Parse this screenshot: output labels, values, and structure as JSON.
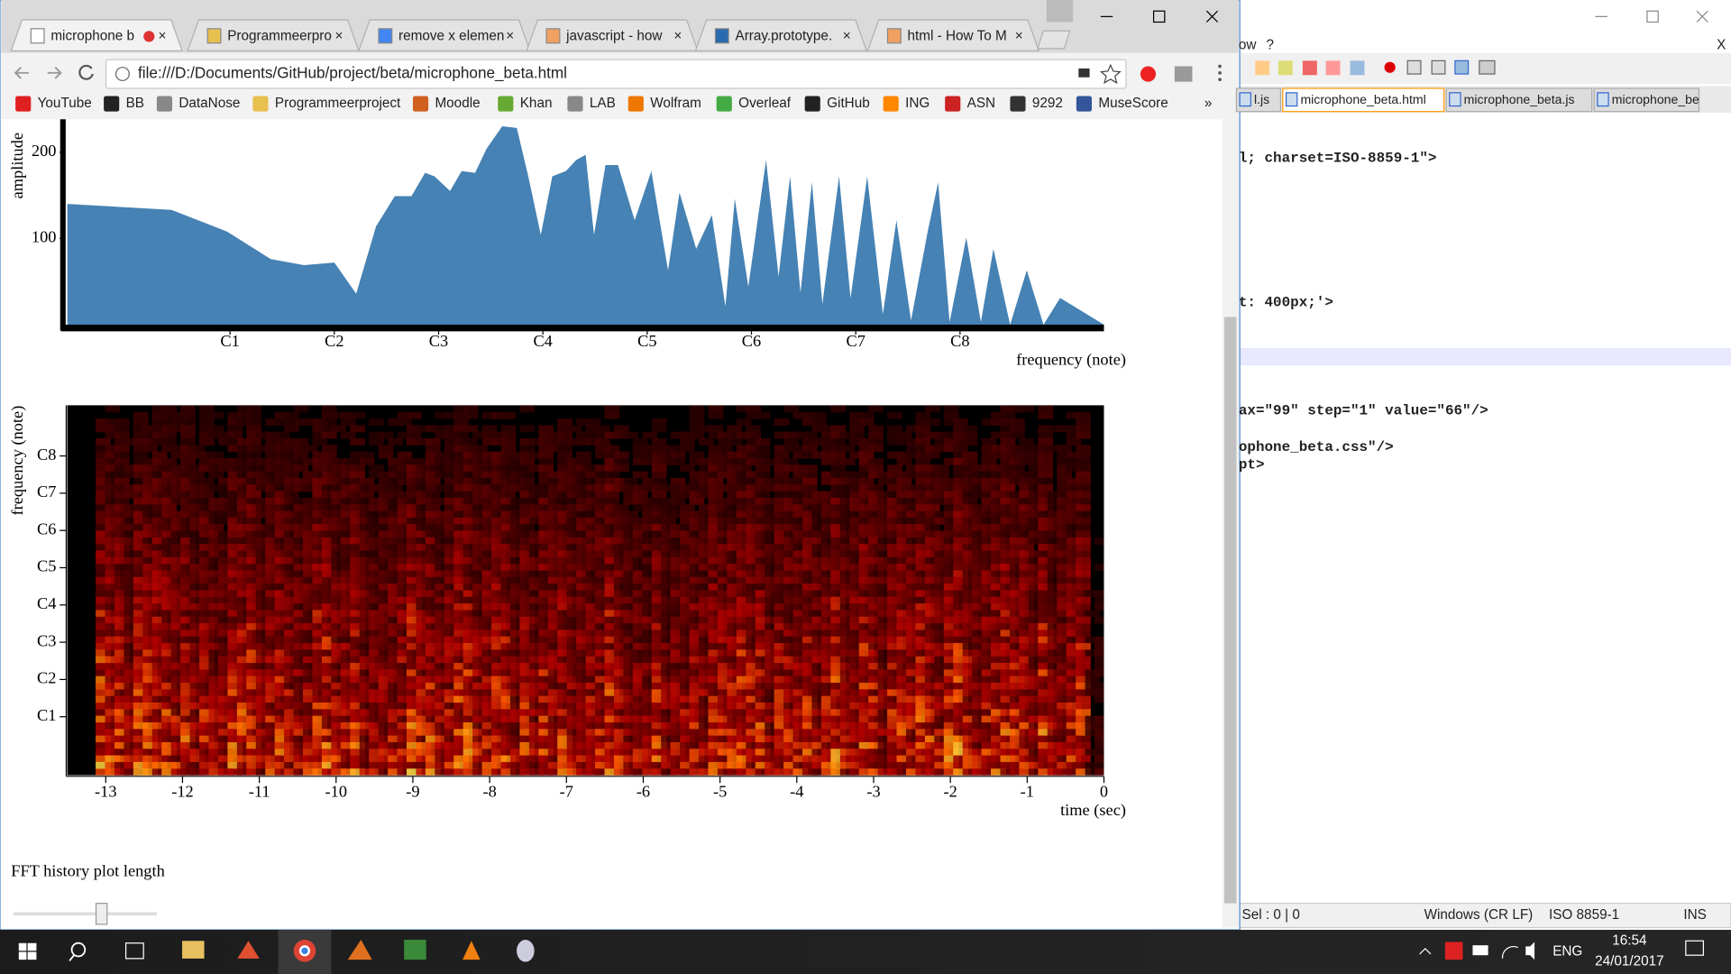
{
  "browser": {
    "tabs": [
      "microphone b",
      "Programmeerpro",
      "remove x elemen",
      "javascript - how",
      "Array.prototype.",
      "html - How To M"
    ],
    "url": "file:///D:/Documents/GitHub/project/beta/microphone_beta.html",
    "bookmarks": [
      "YouTube",
      "BB",
      "DataNose",
      "Programmeerproject",
      "Moodle",
      "Khan",
      "LAB",
      "Wolfram",
      "Overleaf",
      "GitHub",
      "ING",
      "ASN",
      "9292",
      "MuseScore"
    ],
    "more": "»"
  },
  "chart_data": [
    {
      "type": "area",
      "y_label": "amplitude",
      "x_label": "frequency (note)",
      "color": "#4682b4",
      "x": [
        -0.56,
        0.44,
        0.97,
        1.39,
        1.71,
        2.0,
        2.21,
        2.4,
        2.58,
        2.74,
        2.87,
        2.96,
        3.11,
        3.22,
        3.35,
        3.46,
        3.61,
        3.75,
        3.86,
        3.98,
        4.09,
        4.22,
        4.32,
        4.41,
        4.49,
        4.6,
        4.72,
        4.88,
        5.04,
        5.2,
        5.31,
        5.47,
        5.62,
        5.75,
        5.84,
        5.97,
        6.14,
        6.26,
        6.37,
        6.47,
        6.58,
        6.68,
        6.84,
        6.95,
        7.11,
        7.26,
        7.39,
        7.53,
        7.69,
        7.79,
        7.9,
        8.06,
        8.2,
        8.32,
        8.48,
        8.64,
        8.8,
        8.96,
        9.38
      ],
      "values": [
        140,
        133,
        108,
        76,
        69,
        72,
        36,
        114,
        149,
        149,
        176,
        172,
        155,
        178,
        176,
        204,
        230,
        228,
        172,
        104,
        172,
        178,
        191,
        197,
        104,
        185,
        185,
        121,
        178,
        63,
        153,
        88,
        127,
        21,
        146,
        44,
        191,
        56,
        172,
        37,
        165,
        24,
        172,
        31,
        172,
        12,
        121,
        5,
        108,
        165,
        3,
        101,
        3,
        88,
        0,
        63,
        0,
        31,
        0
      ],
      "xlim": [
        -0.56,
        9.38
      ],
      "xticks": [
        {
          "value": 1,
          "label": "C1"
        },
        {
          "value": 2,
          "label": "C2"
        },
        {
          "value": 3,
          "label": "C3"
        },
        {
          "value": 4,
          "label": "C4"
        },
        {
          "value": 5,
          "label": "C5"
        },
        {
          "value": 6,
          "label": "C6"
        },
        {
          "value": 7,
          "label": "C7"
        },
        {
          "value": 8,
          "label": "C8"
        }
      ],
      "ylim": [
        0,
        233
      ],
      "yticks": [
        100,
        200
      ]
    },
    {
      "type": "heatmap",
      "y_label": "frequency (note)",
      "x_label": "time (sec)",
      "xlim": [
        -13.5,
        0
      ],
      "xticks": [
        -13,
        -12,
        -11,
        -10,
        -9,
        -8,
        -7,
        -6,
        -5,
        -4,
        -3,
        -2,
        -1,
        0
      ],
      "ylim": [
        -0.57,
        9.36
      ],
      "yticks": [
        {
          "value": 1,
          "label": "C1"
        },
        {
          "value": 2,
          "label": "C2"
        },
        {
          "value": 3,
          "label": "C3"
        },
        {
          "value": 4,
          "label": "C4"
        },
        {
          "value": 5,
          "label": "C5"
        },
        {
          "value": 6,
          "label": "C6"
        },
        {
          "value": 7,
          "label": "C7"
        },
        {
          "value": 8,
          "label": "C8"
        }
      ]
    }
  ],
  "page": {
    "slider_label": "FFT history plot length"
  },
  "editor": {
    "menu": [
      "ow",
      "?"
    ],
    "close": "X",
    "tabs": [
      "l.js",
      "microphone_beta.html",
      "microphone_beta.js",
      "microphone_be"
    ],
    "code": [
      "l; charset=ISO-8859-1\">",
      "t: 400px;'>",
      "ax=\"99\" step=\"1\" value=\"66\"/>",
      "ophone_beta.css\"/>",
      "pt>"
    ],
    "status": [
      "Sel : 0 | 0",
      "Windows (CR LF)",
      "ISO 8859-1",
      "INS"
    ]
  },
  "taskbar": {
    "language": "ENG",
    "time": "16:54",
    "date": "24/01/2017"
  }
}
